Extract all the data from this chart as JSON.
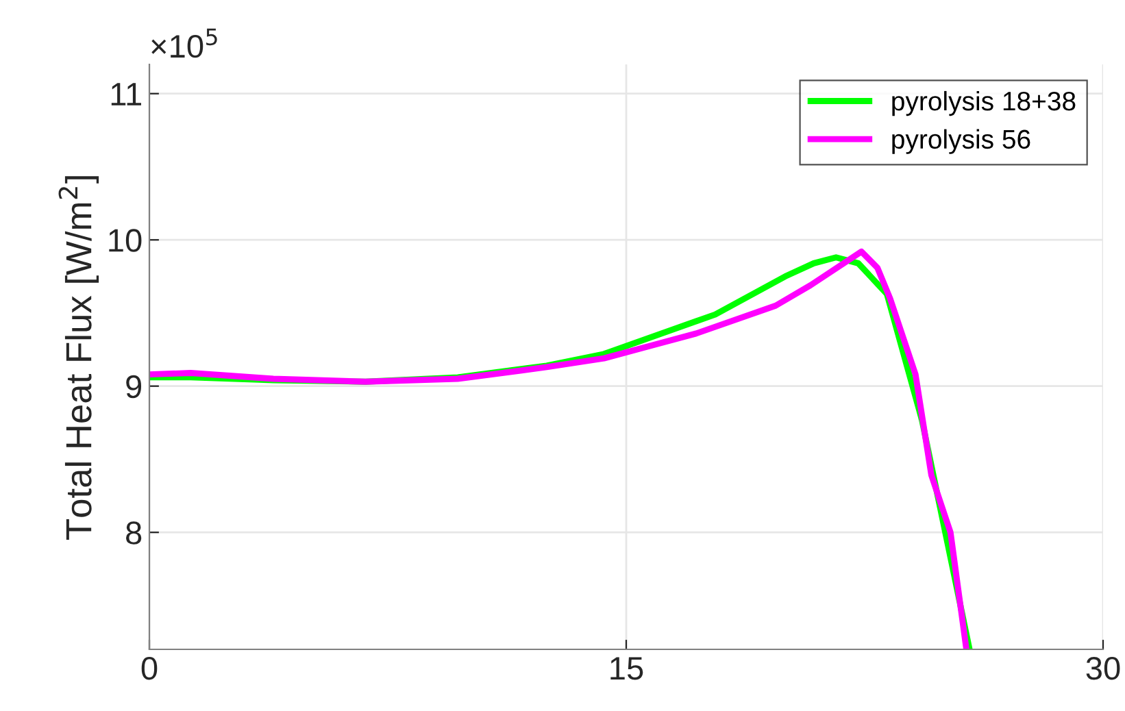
{
  "chart_data": {
    "type": "line",
    "ylabel": "Total Heat Flux [W/m$^{2}$]",
    "annotations": [
      "×10$^{5}$"
    ],
    "xlim": [
      0,
      30
    ],
    "xticks": [
      0,
      15,
      30
    ],
    "ylim": [
      7.2,
      11.2
    ],
    "yticks": [
      8,
      9,
      10,
      11
    ],
    "grid": true,
    "legend": "top right",
    "series": [
      {
        "name": "pyrolysis 18+38",
        "color": "#00ff00",
        "x": [
          0,
          1.3,
          3.9,
          6.8,
          9.7,
          12.5,
          14.3,
          17.8,
          20.0,
          20.9,
          21.6,
          22.3,
          23.2,
          24.3,
          25.8
        ],
        "values": [
          9.06,
          9.06,
          9.04,
          9.03,
          9.06,
          9.14,
          9.22,
          9.49,
          9.75,
          9.84,
          9.88,
          9.84,
          9.63,
          8.77,
          7.2
        ]
      },
      {
        "name": "pyrolysis 56",
        "color": "#ff00ff",
        "x": [
          0,
          1.3,
          3.9,
          6.8,
          9.7,
          12.5,
          14.3,
          17.2,
          19.7,
          20.8,
          22.4,
          22.9,
          23.3,
          24.1,
          24.6,
          25.2,
          25.7
        ],
        "values": [
          9.08,
          9.09,
          9.05,
          9.03,
          9.05,
          9.13,
          9.19,
          9.36,
          9.55,
          9.69,
          9.92,
          9.81,
          9.6,
          9.08,
          8.39,
          8.0,
          7.2
        ]
      }
    ]
  }
}
